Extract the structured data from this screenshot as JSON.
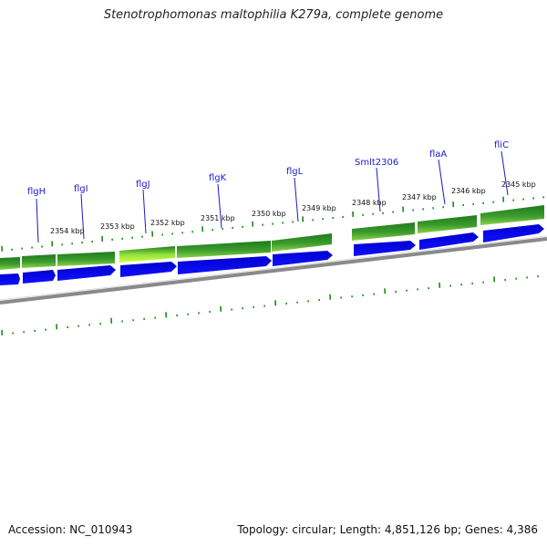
{
  "title": "Stenotrophomonas maltophilia K279a, complete genome",
  "footer": {
    "accession": "Accession: NC_010943",
    "topology": "Topology: circular; Length: 4,851,126 bp; Genes: 4,386"
  },
  "kbp_markers": [
    "2354 kbp",
    "2353 kbp",
    "2352 kbp",
    "2351 kbp",
    "2350 kbp",
    "2349 kbp",
    "2348 kbp",
    "2347 kbp",
    "2346 kbp",
    "2345 kbp"
  ],
  "genes": [
    {
      "name": "flgH"
    },
    {
      "name": "flgI"
    },
    {
      "name": "flgJ"
    },
    {
      "name": "flgK"
    },
    {
      "name": "flgL"
    },
    {
      "name": "Smlt2306"
    },
    {
      "name": "flaA"
    },
    {
      "name": "fliC"
    }
  ],
  "colors": {
    "feature_green": "#2e8b2e",
    "feature_green_light": "#7ccc3a",
    "feature_highlight": "#c8ff3c",
    "cds_blue": "#0000ee",
    "backbone": "#888888",
    "tick": "#1a8a1a",
    "label_blue": "#1a1acc"
  }
}
